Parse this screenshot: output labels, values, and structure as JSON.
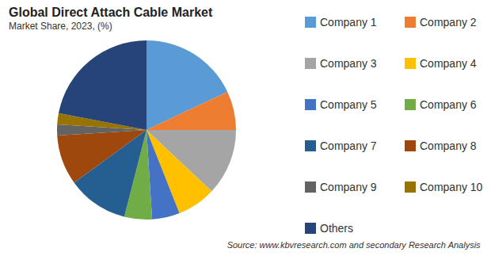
{
  "chart_data": {
    "type": "pie",
    "title": "Global Direct Attach Cable Market",
    "subtitle": "Market Share, 2023, (%)",
    "annotations": [
      "Source: www.kbvresearch.com and secondary Research Analysis"
    ],
    "categories": [
      "Company 1",
      "Company 2",
      "Company 3",
      "Company 4",
      "Company 5",
      "Company 6",
      "Company 7",
      "Company 8",
      "Company 9",
      "Company 10",
      "Others"
    ],
    "values": [
      18,
      7,
      12,
      7,
      5,
      5,
      11,
      9,
      2,
      2,
      22
    ],
    "colors": [
      "#5b9bd5",
      "#ed7d31",
      "#a5a5a5",
      "#ffc000",
      "#4472c4",
      "#70ad47",
      "#255e91",
      "#9e480e",
      "#636363",
      "#997300",
      "#264478"
    ],
    "legend": "right",
    "data_labels": false
  }
}
